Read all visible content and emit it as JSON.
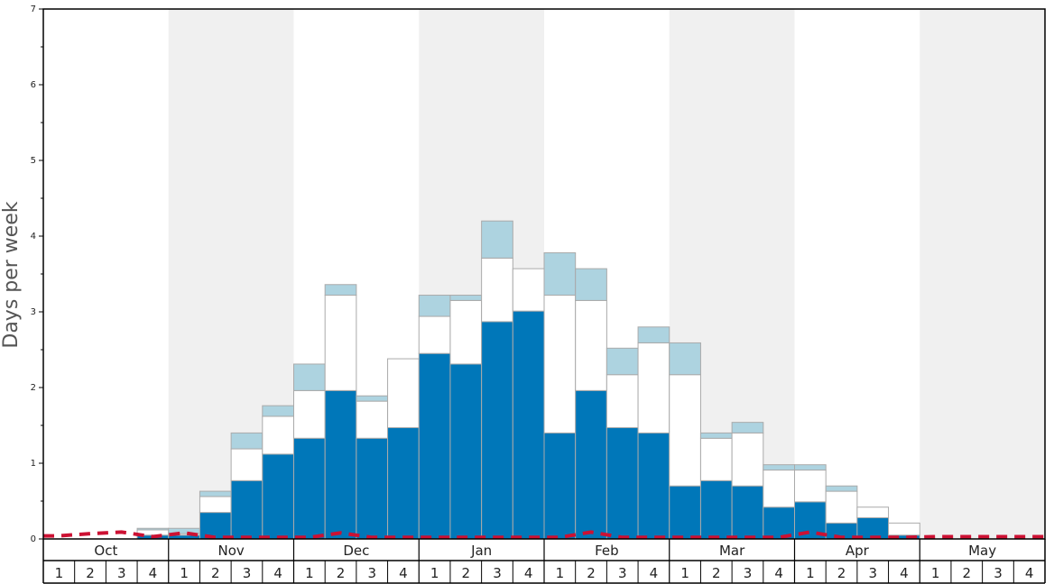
{
  "chart_data": {
    "type": "bar",
    "ylabel": "Days per week",
    "ylim": [
      0,
      7
    ],
    "y_ticks": [
      "0",
      "1",
      "2",
      "3",
      "4",
      "5",
      "6",
      "7"
    ],
    "months": [
      "Oct",
      "Nov",
      "Dec",
      "Jan",
      "Feb",
      "Mar",
      "Apr",
      "May"
    ],
    "week_labels": [
      "1",
      "2",
      "3",
      "4"
    ],
    "stacked": true,
    "colors": {
      "dark": "#0077b9",
      "white": "#ffffff",
      "light": "#add3e0",
      "dashed": "#cc1133",
      "shade": "#f0f0f0"
    },
    "series": [
      {
        "values": [
          0,
          0,
          0,
          0.05,
          0.05,
          0.35,
          0.77,
          1.12,
          1.33,
          1.96,
          1.33,
          1.47,
          2.45,
          2.31,
          2.87,
          3.01,
          1.4,
          1.96,
          1.47,
          1.4,
          0.7,
          0.77,
          0.7,
          0.42,
          0.49,
          0.21,
          0.28,
          0.05,
          0,
          0,
          0,
          0
        ]
      },
      {
        "values": [
          0,
          0,
          0,
          0.07,
          0.02,
          0.21,
          0.42,
          0.5,
          0.63,
          1.26,
          0.49,
          0.91,
          0.49,
          0.84,
          0.84,
          0.56,
          1.82,
          1.19,
          0.7,
          1.19,
          1.47,
          0.56,
          0.7,
          0.49,
          0.42,
          0.42,
          0.14,
          0.16,
          0,
          0,
          0,
          0
        ]
      },
      {
        "values": [
          0,
          0,
          0,
          0.02,
          0.07,
          0.07,
          0.21,
          0.14,
          0.35,
          0.14,
          0.07,
          0,
          0.28,
          0.07,
          0.49,
          0,
          0.56,
          0.42,
          0.35,
          0.21,
          0.42,
          0.07,
          0.14,
          0.07,
          0.07,
          0.07,
          0,
          0,
          0,
          0,
          0,
          0
        ]
      }
    ],
    "dashed_line": [
      0.04,
      0.07,
      0.09,
      0.03,
      0.08,
      0.02,
      0.02,
      0.02,
      0.02,
      0.08,
      0.02,
      0.02,
      0.02,
      0.02,
      0.02,
      0.02,
      0.02,
      0.09,
      0.02,
      0.02,
      0.02,
      0.02,
      0.02,
      0.02,
      0.09,
      0.02,
      0.02,
      0.02,
      0.03,
      0.03,
      0.03,
      0.03
    ],
    "grid": false
  }
}
